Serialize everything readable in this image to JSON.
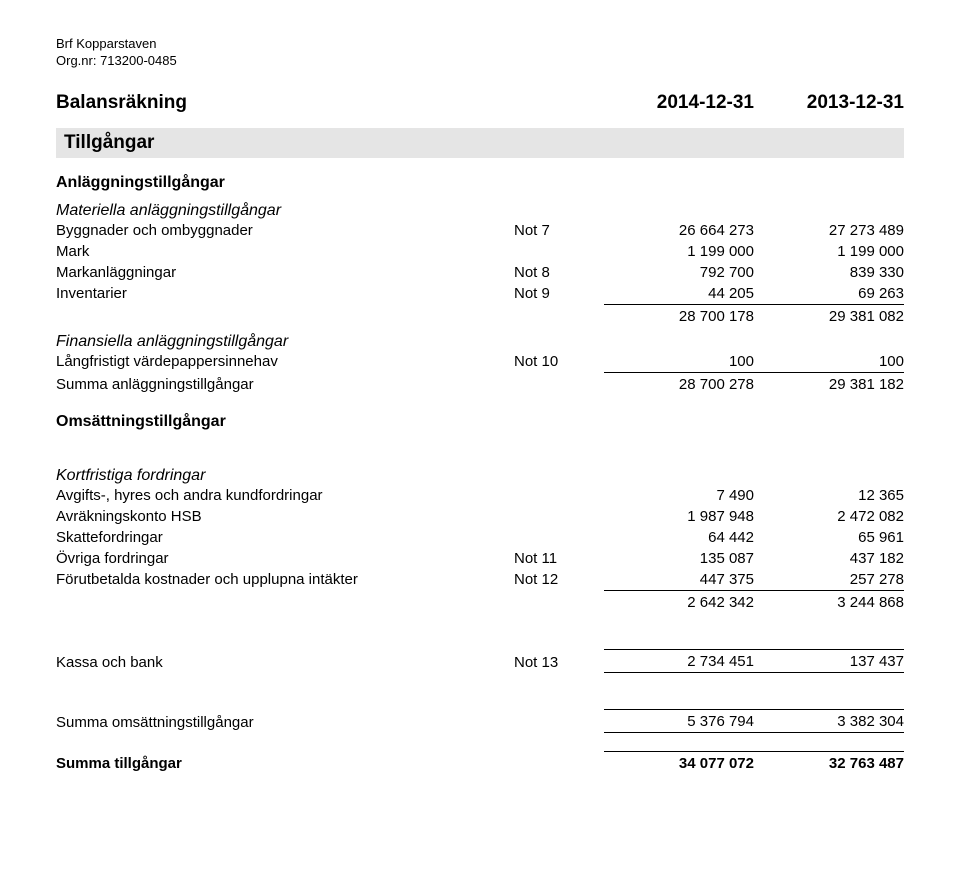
{
  "header": {
    "org": "Brf Kopparstaven",
    "orgnr": "Org.nr: 713200-0485"
  },
  "title": {
    "label": "Balansräkning",
    "col1": "2014-12-31",
    "col2": "2013-12-31"
  },
  "s1": {
    "heading": "Tillgångar"
  },
  "anl": {
    "heading": "Anläggningstillgångar",
    "mat_heading": "Materiella anläggningstillgångar",
    "rows": {
      "bygg": {
        "label": "Byggnader och ombyggnader",
        "note": "Not 7",
        "v1": "26 664 273",
        "v2": "27 273 489"
      },
      "mark": {
        "label": "Mark",
        "note": "",
        "v1": "1 199 000",
        "v2": "1 199 000"
      },
      "markan": {
        "label": "Markanläggningar",
        "note": "Not 8",
        "v1": "792 700",
        "v2": "839 330"
      },
      "inv": {
        "label": "Inventarier",
        "note": "Not 9",
        "v1": "44 205",
        "v2": "69 263"
      },
      "sub": {
        "v1": "28 700 178",
        "v2": "29 381 082"
      }
    },
    "fin_heading": "Finansiella anläggningstillgångar",
    "fin": {
      "lv": {
        "label": "Långfristigt värdepappersinnehav",
        "note": "Not 10",
        "v1": "100",
        "v2": "100"
      },
      "sum": {
        "label": "Summa anläggningstillgångar",
        "v1": "28 700 278",
        "v2": "29 381 182"
      }
    }
  },
  "oms": {
    "heading": "Omsättningstillgångar",
    "kf_heading": "Kortfristiga fordringar",
    "rows": {
      "avg": {
        "label": "Avgifts-, hyres och andra kundfordringar",
        "note": "",
        "v1": "7 490",
        "v2": "12 365"
      },
      "hsb": {
        "label": "Avräkningskonto HSB",
        "note": "",
        "v1": "1 987 948",
        "v2": "2 472 082"
      },
      "skatt": {
        "label": "Skattefordringar",
        "note": "",
        "v1": "64 442",
        "v2": "65 961"
      },
      "ovr": {
        "label": "Övriga fordringar",
        "note": "Not 11",
        "v1": "135 087",
        "v2": "437 182"
      },
      "for": {
        "label": "Förutbetalda kostnader och upplupna intäkter",
        "note": "Not 12",
        "v1": "447 375",
        "v2": "257 278"
      },
      "sub": {
        "v1": "2 642 342",
        "v2": "3 244 868"
      }
    },
    "kassa": {
      "label": "Kassa och bank",
      "note": "Not 13",
      "v1": "2 734 451",
      "v2": "137 437"
    },
    "sum": {
      "label": "Summa omsättningstillgångar",
      "v1": "5 376 794",
      "v2": "3 382 304"
    }
  },
  "total": {
    "label": "Summa tillgångar",
    "v1": "34 077 072",
    "v2": "32 763 487"
  }
}
